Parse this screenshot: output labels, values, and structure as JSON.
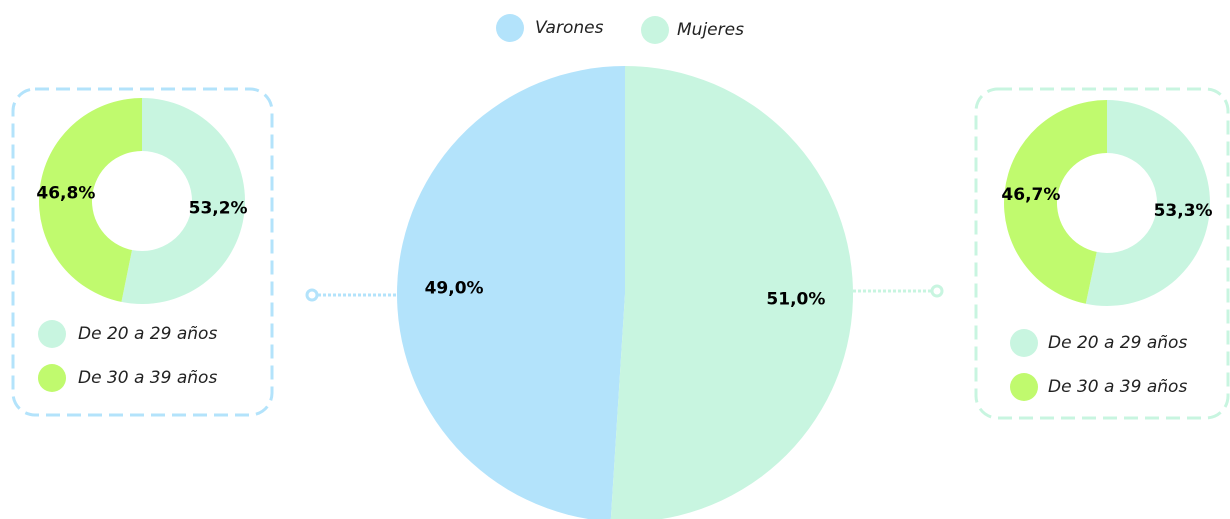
{
  "chart_data": [
    {
      "type": "pie",
      "categories": [
        "Varones",
        "Mujeres"
      ],
      "values": [
        49.0,
        51.0
      ],
      "value_labels": [
        "49,0%",
        "51,0%"
      ],
      "colors": [
        "#b3e3fb",
        "#c8f5e0"
      ]
    },
    {
      "type": "donut",
      "categories": [
        "De 20 a 29 años",
        "De 30 a 39 años"
      ],
      "values": [
        53.2,
        46.8
      ],
      "value_labels": [
        "53,2%",
        "46,8%"
      ],
      "colors": [
        "#c8f5e0",
        "#c0fa6e"
      ]
    },
    {
      "type": "donut",
      "categories": [
        "De 20 a 29 años",
        "De 30 a 39 años"
      ],
      "values": [
        53.3,
        46.7
      ],
      "value_labels": [
        "53,3%",
        "46,7%"
      ],
      "colors": [
        "#c8f5e0",
        "#c0fa6e"
      ]
    }
  ]
}
